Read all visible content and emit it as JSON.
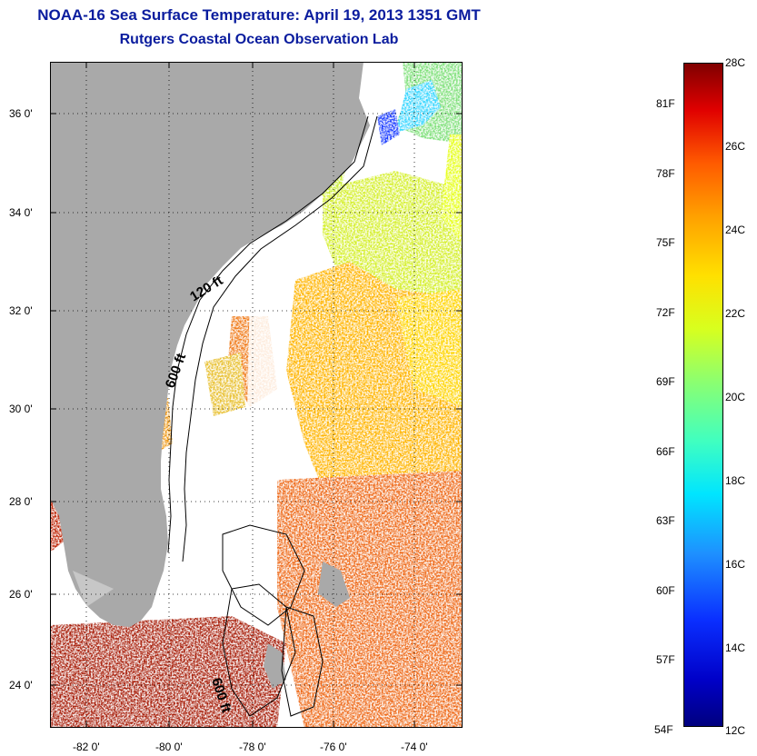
{
  "title": {
    "line1": "NOAA-16 Sea Surface Temperature:  April 19, 2013 1351 GMT",
    "line2": "Rutgers Coastal Ocean Observation Lab"
  },
  "map": {
    "lat_labels": [
      "36 0'",
      "34 0'",
      "32 0'",
      "30 0'",
      "28 0'",
      "26 0'",
      "24 0'"
    ],
    "lon_labels": [
      "-82 0'",
      "-80 0'",
      "-78 0'",
      "-76 0'",
      "-74 0'"
    ],
    "contour_labels": [
      "120 ft",
      "600 ft",
      "600 ft"
    ],
    "colors": {
      "land": "#a9a9a9",
      "title": "#0a1c9e",
      "no_data": "#ffffff"
    }
  },
  "colorbar": {
    "f_labels": [
      "81F",
      "78F",
      "75F",
      "72F",
      "69F",
      "66F",
      "63F",
      "60F",
      "57F",
      "54F"
    ],
    "c_labels": [
      "28C",
      "26C",
      "24C",
      "22C",
      "20C",
      "18C",
      "16C",
      "14C",
      "12C"
    ]
  }
}
